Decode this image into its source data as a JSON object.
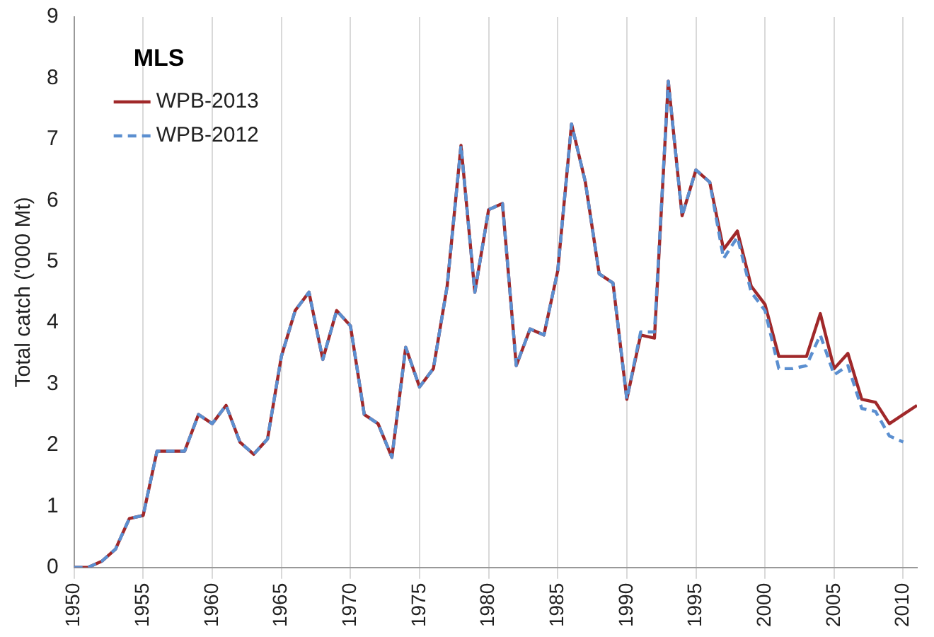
{
  "chart_data": {
    "type": "line",
    "legend_title": "MLS",
    "ylabel": "Total catch ('000 Mt)",
    "x": [
      1950,
      1951,
      1952,
      1953,
      1954,
      1955,
      1956,
      1957,
      1958,
      1959,
      1960,
      1961,
      1962,
      1963,
      1964,
      1965,
      1966,
      1967,
      1968,
      1969,
      1970,
      1971,
      1972,
      1973,
      1974,
      1975,
      1976,
      1977,
      1978,
      1979,
      1980,
      1981,
      1982,
      1983,
      1984,
      1985,
      1986,
      1987,
      1988,
      1989,
      1990,
      1991,
      1992,
      1993,
      1994,
      1995,
      1996,
      1997,
      1998,
      1999,
      2000,
      2001,
      2002,
      2003,
      2004,
      2005,
      2006,
      2007,
      2008,
      2009,
      2010,
      2011
    ],
    "series": [
      {
        "name": "WPB-2013",
        "color": "#a0282a",
        "line_style": "solid",
        "values": [
          0,
          0,
          0.1,
          0.3,
          0.8,
          0.85,
          1.9,
          1.9,
          1.9,
          2.5,
          2.35,
          2.65,
          2.05,
          1.85,
          2.1,
          3.45,
          4.2,
          4.5,
          3.4,
          4.2,
          3.95,
          2.5,
          2.35,
          1.8,
          3.6,
          2.95,
          3.25,
          4.6,
          6.9,
          4.5,
          5.85,
          5.95,
          3.3,
          3.9,
          3.8,
          4.85,
          7.25,
          6.3,
          4.8,
          4.65,
          2.75,
          3.8,
          3.75,
          7.95,
          5.75,
          6.5,
          6.3,
          5.2,
          5.5,
          4.6,
          4.3,
          3.45,
          3.45,
          3.45,
          4.15,
          3.25,
          3.5,
          2.75,
          2.7,
          2.35,
          2.5,
          2.65
        ]
      },
      {
        "name": "WPB-2012",
        "color": "#5b8fd0",
        "line_style": "dashed",
        "values": [
          0,
          0,
          0.1,
          0.3,
          0.8,
          0.85,
          1.9,
          1.9,
          1.9,
          2.5,
          2.35,
          2.65,
          2.05,
          1.85,
          2.1,
          3.45,
          4.2,
          4.5,
          3.4,
          4.2,
          3.95,
          2.5,
          2.35,
          1.8,
          3.6,
          2.95,
          3.25,
          4.6,
          6.9,
          4.5,
          5.85,
          5.95,
          3.3,
          3.9,
          3.8,
          4.85,
          7.25,
          6.3,
          4.8,
          4.65,
          2.75,
          3.85,
          3.85,
          7.95,
          5.75,
          6.5,
          6.3,
          5.05,
          5.4,
          4.5,
          4.2,
          3.25,
          3.25,
          3.3,
          3.8,
          3.15,
          3.3,
          2.6,
          2.55,
          2.15,
          2.05,
          null
        ]
      }
    ],
    "xlim": [
      1950,
      2011
    ],
    "xticks": [
      1950,
      1955,
      1960,
      1965,
      1970,
      1975,
      1980,
      1985,
      1990,
      1995,
      2000,
      2005,
      2010
    ],
    "ylim": [
      0,
      9
    ],
    "yticks": [
      0,
      1,
      2,
      3,
      4,
      5,
      6,
      7,
      8,
      9
    ],
    "grid": "x",
    "legend": "top left",
    "marker": "none"
  }
}
